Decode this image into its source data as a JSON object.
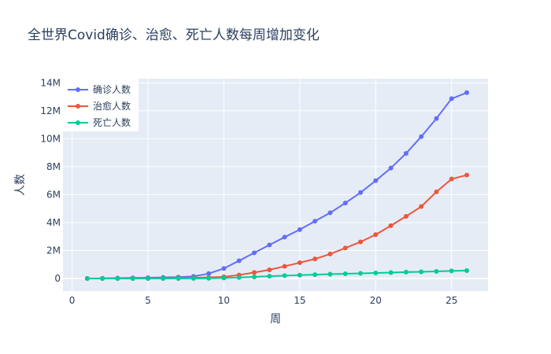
{
  "chart_data": {
    "type": "line",
    "title": "全世界Covid确诊、治愈、死亡人数每周增加变化",
    "xlabel": "周",
    "ylabel": "人数",
    "xlim": [
      -0.6,
      27.4
    ],
    "ylim": [
      -900000,
      14300000
    ],
    "x_ticks": [
      0,
      5,
      10,
      15,
      20,
      25
    ],
    "x_tick_labels": [
      "0",
      "5",
      "10",
      "15",
      "20",
      "25"
    ],
    "y_ticks": [
      0,
      2000000,
      4000000,
      6000000,
      8000000,
      10000000,
      12000000,
      14000000
    ],
    "y_tick_labels": [
      "0",
      "2M",
      "4M",
      "6M",
      "8M",
      "10M",
      "12M",
      "14M"
    ],
    "grid": true,
    "legend": "top-left",
    "x": [
      1,
      2,
      3,
      4,
      5,
      6,
      7,
      8,
      9,
      10,
      11,
      12,
      13,
      14,
      15,
      16,
      17,
      18,
      19,
      20,
      21,
      22,
      23,
      24,
      25,
      26
    ],
    "series": [
      {
        "name": "确诊人数",
        "color": "#636efa",
        "values": [
          2000,
          12000,
          28000,
          45000,
          60000,
          80000,
          100000,
          150000,
          350000,
          720000,
          1270000,
          1840000,
          2400000,
          2960000,
          3500000,
          4100000,
          4700000,
          5400000,
          6150000,
          7000000,
          7900000,
          8950000,
          10150000,
          11450000,
          12870000,
          13300000
        ]
      },
      {
        "name": "治愈人数",
        "color": "#ef553b",
        "values": [
          0,
          500,
          1000,
          3000,
          8000,
          20000,
          35000,
          55000,
          80000,
          120000,
          250000,
          430000,
          620000,
          870000,
          1130000,
          1400000,
          1750000,
          2180000,
          2620000,
          3140000,
          3780000,
          4450000,
          5150000,
          6200000,
          7120000,
          7400000
        ]
      },
      {
        "name": "死亡人数",
        "color": "#00cc96",
        "values": [
          0,
          200,
          600,
          1000,
          1500,
          2500,
          3500,
          5000,
          12000,
          35000,
          70000,
          115000,
          165000,
          205000,
          240000,
          275000,
          310000,
          340000,
          370000,
          395000,
          425000,
          455000,
          480000,
          510000,
          540000,
          565000
        ]
      }
    ]
  }
}
